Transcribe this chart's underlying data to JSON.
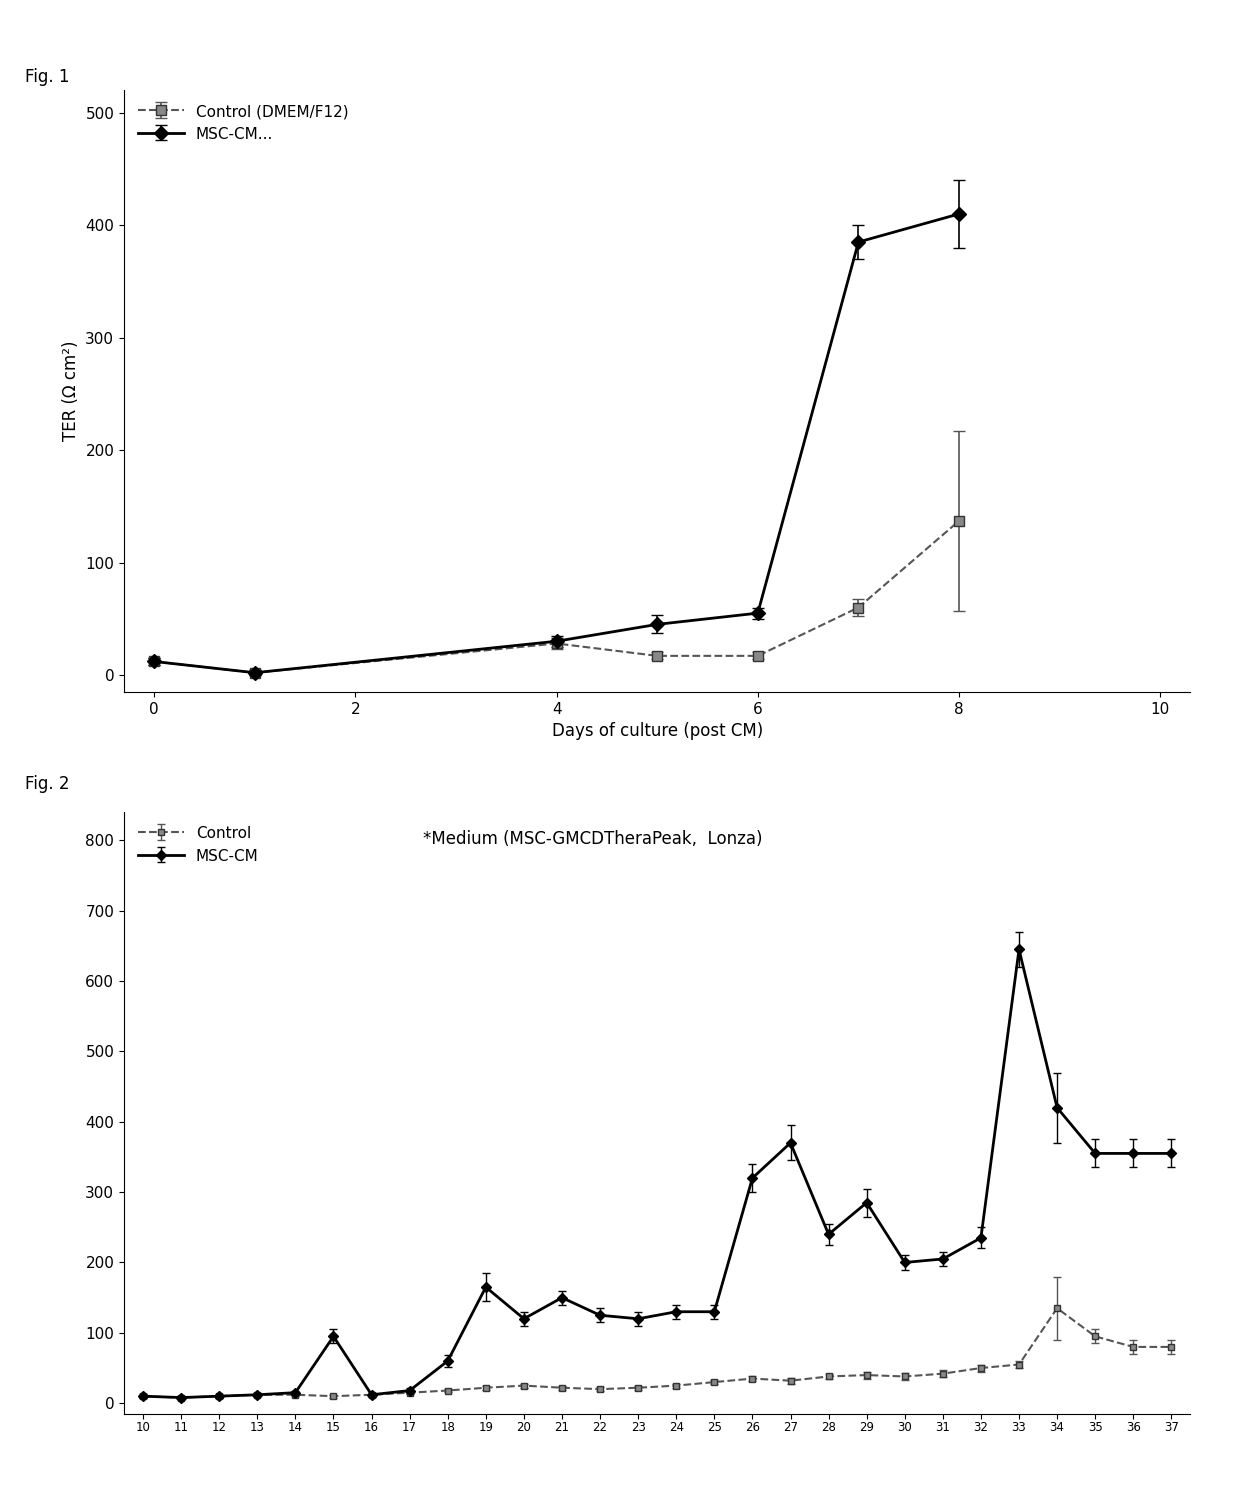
{
  "fig1": {
    "title": "Fig. 1",
    "xlabel": "Days of culture (post CM)",
    "ylabel": "TER (Ω cm²)",
    "xlim": [
      -0.3,
      10.3
    ],
    "ylim": [
      -15,
      520
    ],
    "yticks": [
      0,
      100,
      200,
      300,
      400,
      500
    ],
    "xticks": [
      0,
      2,
      4,
      6,
      8,
      10
    ],
    "control": {
      "label": "Control (DMEM/F12)",
      "x": [
        0,
        1,
        4,
        5,
        6,
        7,
        8
      ],
      "y": [
        12,
        2,
        28,
        17,
        17,
        60,
        137
      ],
      "yerr": [
        3,
        2,
        5,
        3,
        3,
        8,
        80
      ]
    },
    "msccm": {
      "label": "MSC-CM...",
      "x": [
        0,
        1,
        4,
        5,
        6,
        7,
        8
      ],
      "y": [
        12,
        2,
        30,
        45,
        55,
        385,
        410
      ],
      "yerr": [
        3,
        2,
        5,
        8,
        5,
        15,
        30
      ]
    }
  },
  "fig2": {
    "title": "Fig. 2",
    "annotation": "*Medium (MSC-GMCDTheraPeak,  Lonza)",
    "xlim": [
      9.5,
      37.5
    ],
    "ylim": [
      -15,
      840
    ],
    "yticks": [
      0,
      100,
      200,
      300,
      400,
      500,
      600,
      700,
      800
    ],
    "xticks": [
      10,
      11,
      12,
      13,
      14,
      15,
      16,
      17,
      18,
      19,
      20,
      21,
      22,
      23,
      24,
      25,
      26,
      27,
      28,
      29,
      30,
      31,
      32,
      33,
      34,
      35,
      36,
      37
    ],
    "control": {
      "label": "Control",
      "x": [
        10,
        11,
        12,
        13,
        14,
        15,
        16,
        17,
        18,
        19,
        20,
        21,
        22,
        23,
        24,
        25,
        26,
        27,
        28,
        29,
        30,
        31,
        32,
        33,
        34,
        35,
        36,
        37
      ],
      "y": [
        10,
        8,
        10,
        12,
        12,
        10,
        12,
        15,
        18,
        22,
        25,
        22,
        20,
        22,
        25,
        30,
        35,
        32,
        38,
        40,
        38,
        42,
        50,
        55,
        135,
        95,
        80,
        80
      ],
      "yerr": [
        2,
        2,
        2,
        2,
        2,
        2,
        2,
        2,
        2,
        3,
        3,
        3,
        3,
        3,
        3,
        3,
        4,
        4,
        4,
        5,
        5,
        5,
        5,
        5,
        45,
        10,
        10,
        10
      ]
    },
    "msccm": {
      "label": "MSC-CM",
      "x": [
        10,
        11,
        12,
        13,
        14,
        15,
        16,
        17,
        18,
        19,
        20,
        21,
        22,
        23,
        24,
        25,
        26,
        27,
        28,
        29,
        30,
        31,
        32,
        33,
        34,
        35,
        36,
        37
      ],
      "y": [
        10,
        8,
        10,
        12,
        15,
        95,
        12,
        18,
        60,
        165,
        120,
        150,
        125,
        120,
        130,
        130,
        320,
        370,
        240,
        285,
        200,
        205,
        235,
        645,
        420,
        355,
        355,
        355
      ],
      "yerr": [
        3,
        2,
        2,
        2,
        3,
        10,
        3,
        3,
        8,
        20,
        10,
        10,
        10,
        10,
        10,
        10,
        20,
        25,
        15,
        20,
        10,
        10,
        15,
        25,
        50,
        20,
        20,
        20
      ]
    }
  }
}
